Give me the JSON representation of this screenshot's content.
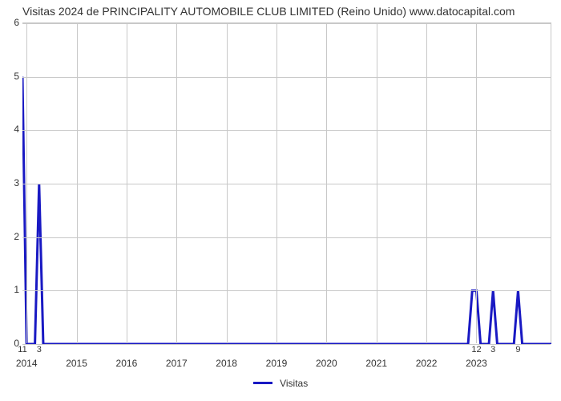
{
  "chart": {
    "type": "line",
    "title": "Visitas 2024 de PRINCIPALITY AUTOMOBILE CLUB LIMITED (Reino Unido) www.datocapital.com",
    "title_fontsize": 14,
    "title_color": "#333333",
    "background_color": "#ffffff",
    "grid_color": "#c8c8c8",
    "axis_label_color": "#333333",
    "axis_label_fontsize": 12,
    "y": {
      "lim": [
        0,
        6
      ],
      "ticks": [
        0,
        1,
        2,
        3,
        4,
        5,
        6
      ]
    },
    "x": {
      "year_ticks": [
        "2014",
        "2015",
        "2016",
        "2017",
        "2018",
        "2019",
        "2020",
        "2021",
        "2022",
        "2023"
      ],
      "lim_months": [
        0,
        127
      ],
      "secondary_labels": [
        {
          "month": 0,
          "label": "11"
        },
        {
          "month": 4,
          "label": "3"
        },
        {
          "month": 109,
          "label": "12"
        },
        {
          "month": 113,
          "label": "3"
        },
        {
          "month": 119,
          "label": "9"
        }
      ]
    },
    "series": {
      "name": "Visitas",
      "color": "#1919c3",
      "line_width": 3,
      "points": [
        {
          "month": 0,
          "value": 5
        },
        {
          "month": 1,
          "value": 0
        },
        {
          "month": 3,
          "value": 0
        },
        {
          "month": 4,
          "value": 3
        },
        {
          "month": 5,
          "value": 0
        },
        {
          "month": 107,
          "value": 0
        },
        {
          "month": 108,
          "value": 1
        },
        {
          "month": 109,
          "value": 1
        },
        {
          "month": 110,
          "value": 0
        },
        {
          "month": 112,
          "value": 0
        },
        {
          "month": 113,
          "value": 1
        },
        {
          "month": 114,
          "value": 0
        },
        {
          "month": 118,
          "value": 0
        },
        {
          "month": 119,
          "value": 1
        },
        {
          "month": 120,
          "value": 0
        },
        {
          "month": 127,
          "value": 0
        }
      ]
    },
    "legend": {
      "items": [
        {
          "label": "Visitas",
          "color": "#1919c3"
        }
      ]
    }
  }
}
